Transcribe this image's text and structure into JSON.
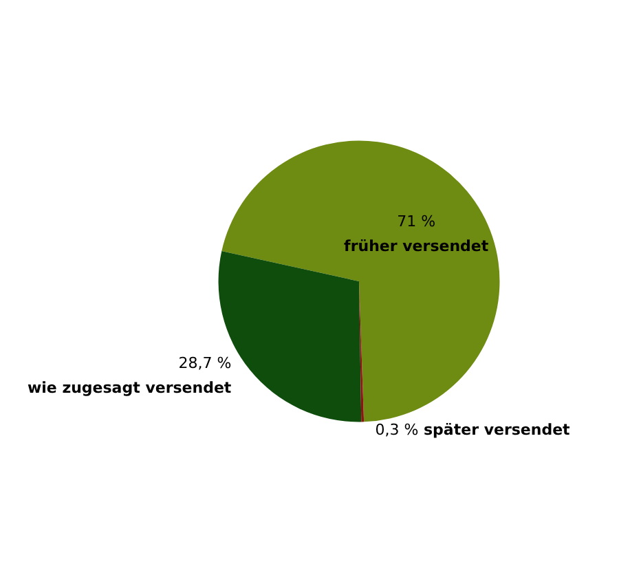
{
  "chart_data": {
    "type": "pie",
    "categories": [
      "früher versendet",
      "wie zugesagt versendet",
      "später versendet"
    ],
    "values": [
      71,
      28.7,
      0.3
    ],
    "value_labels": [
      "71 %",
      "28,7 %",
      "0,3 %"
    ],
    "colors": [
      "#6e8b12",
      "#0e4d0c",
      "#8e1414"
    ],
    "legend": false
  }
}
